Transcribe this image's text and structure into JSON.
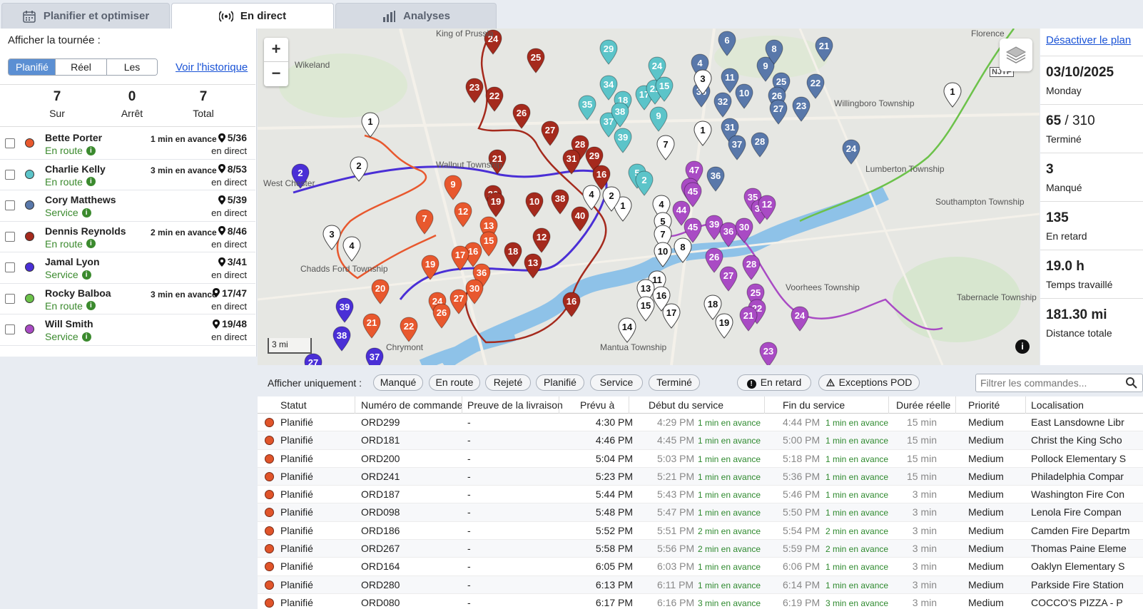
{
  "tabs": [
    {
      "label": "Planifier et optimiser",
      "icon": "calendar-icon"
    },
    {
      "label": "En direct",
      "icon": "broadcast-icon",
      "active": true
    },
    {
      "label": "Analyses",
      "icon": "bar-chart-icon"
    }
  ],
  "left": {
    "show_route_label": "Afficher la tournée :",
    "segments": [
      "Planifié",
      "Réel",
      "Les deux"
    ],
    "history_link": "Voir l'historique",
    "stats": [
      {
        "value": "7",
        "label": "Sur"
      },
      {
        "value": "0",
        "label": "Arrêt"
      },
      {
        "value": "7",
        "label": "Total"
      }
    ],
    "drivers": [
      {
        "name": "Bette Porter",
        "status": "En route",
        "time": "1 min en avance",
        "progress": "5/36",
        "live": "en direct",
        "color": "#e8582e"
      },
      {
        "name": "Charlie Kelly",
        "status": "En route",
        "time": "3 min en avance",
        "progress": "8/53",
        "live": "en direct",
        "color": "#5cc4c9"
      },
      {
        "name": "Cory Matthews",
        "status": "Service",
        "time": "",
        "progress": "5/39",
        "live": "en direct",
        "color": "#5978aa"
      },
      {
        "name": "Dennis Reynolds",
        "status": "En route",
        "time": "2 min en avance",
        "progress": "8/46",
        "live": "en direct",
        "color": "#a52a1d"
      },
      {
        "name": "Jamal Lyon",
        "status": "Service",
        "time": "",
        "progress": "3/41",
        "live": "en direct",
        "color": "#4a2fd6"
      },
      {
        "name": "Rocky Balboa",
        "status": "En route",
        "time": "3 min en avance",
        "progress": "17/47",
        "live": "en direct",
        "color": "#6cc24a"
      },
      {
        "name": "Will Smith",
        "status": "Service",
        "time": "",
        "progress": "19/48",
        "live": "en direct",
        "color": "#a94bc4"
      }
    ]
  },
  "map": {
    "zoom_in": "+",
    "zoom_out": "−",
    "scale": "3 mi",
    "info": "i",
    "labels": [
      "Wikeland",
      "King of Prussia",
      "Florence",
      "Willingboro Township",
      "Lumberton Township",
      "Southampton Township",
      "Tabernacle Township",
      "Voorhees Township",
      "Chadds Ford Township",
      "Mantua Township",
      "Chrymont",
      "West Chester",
      "Wallnut Township",
      "NJTP"
    ]
  },
  "right": {
    "deactivate_link": "Désactiver le plan",
    "date": "03/10/2025",
    "weekday": "Monday",
    "completed": "65",
    "completed_total": "310",
    "completed_label": "Terminé",
    "missed": "3",
    "missed_label": "Manqué",
    "late": "135",
    "late_label": "En retard",
    "worked": "19.0 h",
    "worked_label": "Temps travaillé",
    "distance": "181.30 mi",
    "distance_label": "Distance totale"
  },
  "filters": {
    "label": "Afficher uniquement :",
    "chips": [
      "Manqué",
      "En route",
      "Rejeté",
      "Planifié",
      "Service",
      "Terminé"
    ],
    "late_chip": "En retard",
    "pod_chip": "Exceptions POD",
    "search_placeholder": "Filtrer les commandes..."
  },
  "table": {
    "columns": [
      "Statut",
      "Numéro de commande",
      "Preuve de la livraison",
      "Prévu à",
      "Début du service",
      "Fin du service",
      "Durée réelle",
      "Priorité",
      "Localisation"
    ],
    "rows": [
      {
        "status": "Planifié",
        "order": "ORD299",
        "pod": "-",
        "planned": "4:30 PM",
        "start": "4:29 PM",
        "start_note": "1 min en avance",
        "end": "4:44 PM",
        "end_note": "1 min en avance",
        "duration": "15 min",
        "priority": "Medium",
        "location": "East Lansdowne Libr"
      },
      {
        "status": "Planifié",
        "order": "ORD181",
        "pod": "-",
        "planned": "4:46 PM",
        "start": "4:45 PM",
        "start_note": "1 min en avance",
        "end": "5:00 PM",
        "end_note": "1 min en avance",
        "duration": "15 min",
        "priority": "Medium",
        "location": "Christ the King Scho"
      },
      {
        "status": "Planifié",
        "order": "ORD200",
        "pod": "-",
        "planned": "5:04 PM",
        "start": "5:03 PM",
        "start_note": "1 min en avance",
        "end": "5:18 PM",
        "end_note": "1 min en avance",
        "duration": "15 min",
        "priority": "Medium",
        "location": "Pollock Elementary S"
      },
      {
        "status": "Planifié",
        "order": "ORD241",
        "pod": "-",
        "planned": "5:23 PM",
        "start": "5:21 PM",
        "start_note": "1 min en avance",
        "end": "5:36 PM",
        "end_note": "1 min en avance",
        "duration": "15 min",
        "priority": "Medium",
        "location": "Philadelphia Compar"
      },
      {
        "status": "Planifié",
        "order": "ORD187",
        "pod": "-",
        "planned": "5:44 PM",
        "start": "5:43 PM",
        "start_note": "1 min en avance",
        "end": "5:46 PM",
        "end_note": "1 min en avance",
        "duration": "3 min",
        "priority": "Medium",
        "location": "Washington Fire Con"
      },
      {
        "status": "Planifié",
        "order": "ORD098",
        "pod": "-",
        "planned": "5:48 PM",
        "start": "5:47 PM",
        "start_note": "1 min en avance",
        "end": "5:50 PM",
        "end_note": "1 min en avance",
        "duration": "3 min",
        "priority": "Medium",
        "location": "Lenola Fire Compan"
      },
      {
        "status": "Planifié",
        "order": "ORD186",
        "pod": "-",
        "planned": "5:52 PM",
        "start": "5:51 PM",
        "start_note": "2 min en avance",
        "end": "5:54 PM",
        "end_note": "2 min en avance",
        "duration": "3 min",
        "priority": "Medium",
        "location": "Camden Fire Departm"
      },
      {
        "status": "Planifié",
        "order": "ORD267",
        "pod": "-",
        "planned": "5:58 PM",
        "start": "5:56 PM",
        "start_note": "2 min en avance",
        "end": "5:59 PM",
        "end_note": "2 min en avance",
        "duration": "3 min",
        "priority": "Medium",
        "location": "Thomas Paine Eleme"
      },
      {
        "status": "Planifié",
        "order": "ORD164",
        "pod": "-",
        "planned": "6:05 PM",
        "start": "6:03 PM",
        "start_note": "1 min en avance",
        "end": "6:06 PM",
        "end_note": "1 min en avance",
        "duration": "3 min",
        "priority": "Medium",
        "location": "Oaklyn Elementary S"
      },
      {
        "status": "Planifié",
        "order": "ORD280",
        "pod": "-",
        "planned": "6:13 PM",
        "start": "6:11 PM",
        "start_note": "1 min en avance",
        "end": "6:14 PM",
        "end_note": "1 min en avance",
        "duration": "3 min",
        "priority": "Medium",
        "location": "Parkside Fire Station"
      },
      {
        "status": "Planifié",
        "order": "ORD080",
        "pod": "-",
        "planned": "6:17 PM",
        "start": "6:16 PM",
        "start_note": "3 min en avance",
        "end": "6:19 PM",
        "end_note": "3 min en avance",
        "duration": "3 min",
        "priority": "Medium",
        "location": "COCCO'S PIZZA - P"
      }
    ]
  }
}
